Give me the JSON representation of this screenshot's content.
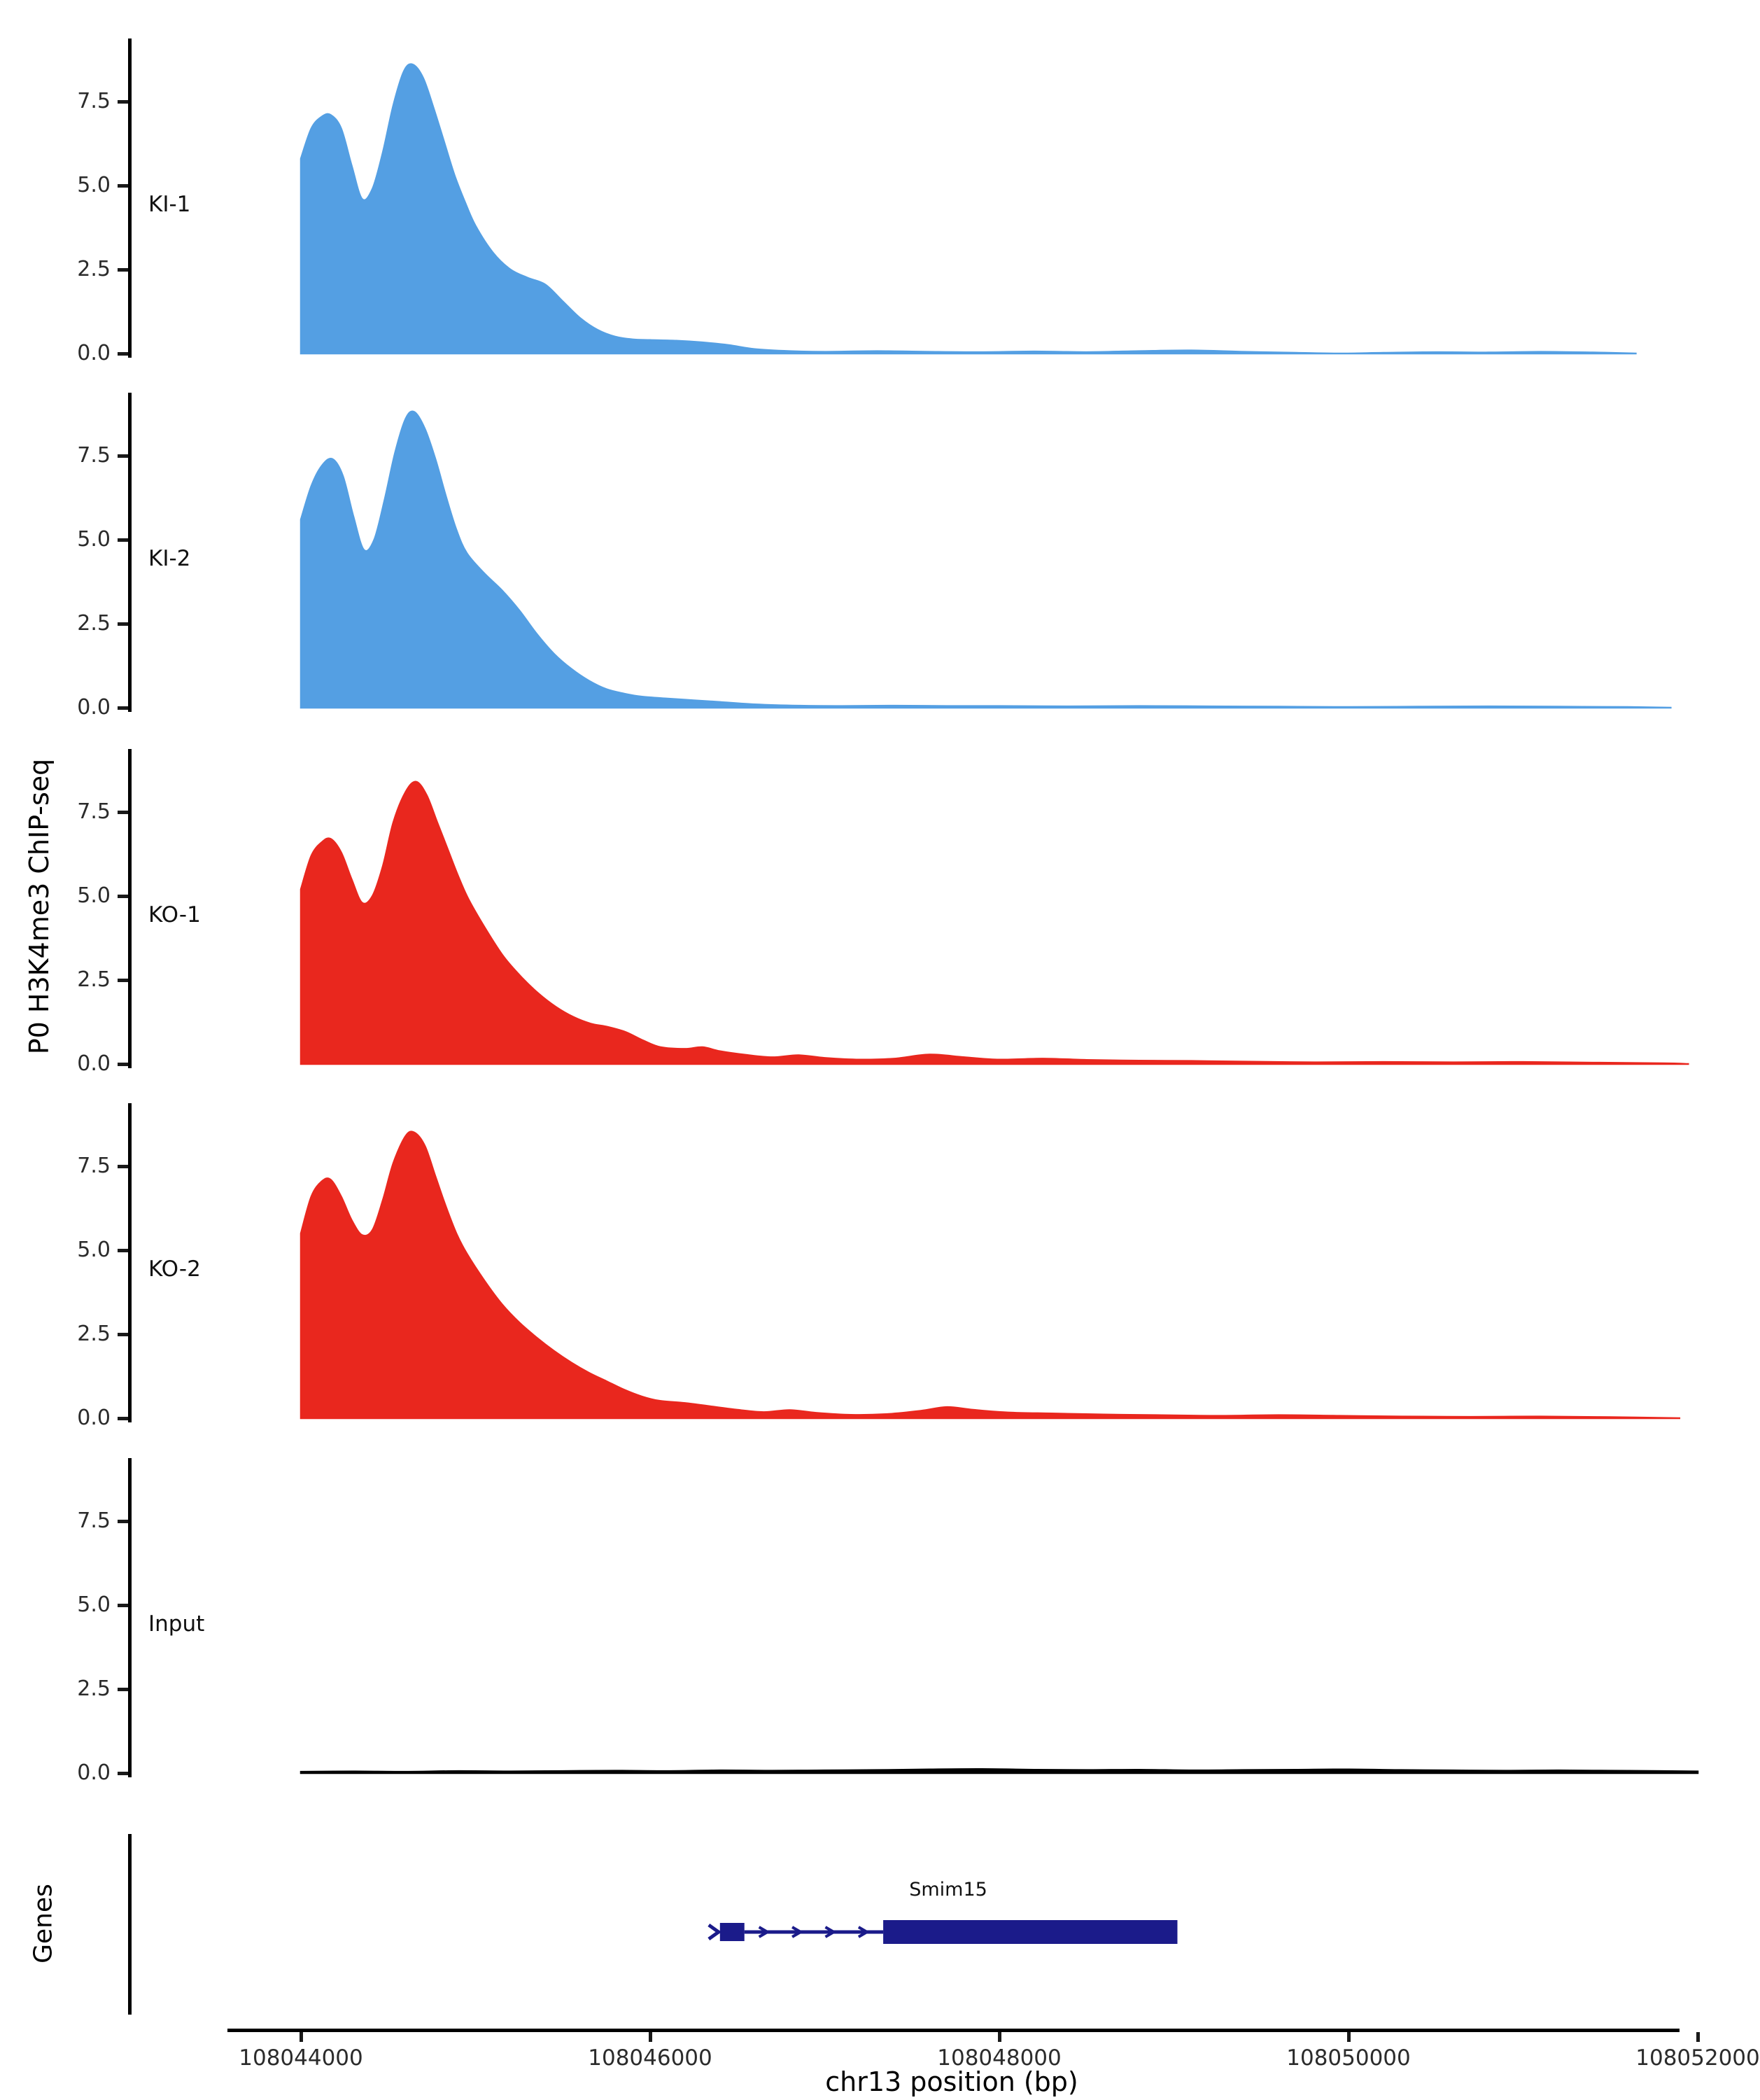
{
  "chart_data": {
    "type": "area",
    "title": "",
    "x_unit": "bp",
    "x_domain": [
      108044000,
      108052000
    ],
    "y_domain": [
      0,
      9.375
    ],
    "grid": false,
    "y_axis_title": "P0 H3K4me3 ChIP-seq",
    "x_axis_title": "chr13 position (bp)",
    "genes_panel_title": "Genes",
    "y_ticks": [
      {
        "value": 7.5,
        "label": "7.5"
      },
      {
        "value": 5.0,
        "label": "5.0"
      },
      {
        "value": 2.5,
        "label": "2.5"
      },
      {
        "value": 0.0,
        "label": "0.0"
      }
    ],
    "x_ticks": [
      {
        "bp": 108044000,
        "label": "108044000"
      },
      {
        "bp": 108046000,
        "label": "108046000"
      },
      {
        "bp": 108048000,
        "label": "108048000"
      },
      {
        "bp": 108050000,
        "label": "108050000"
      },
      {
        "bp": 108052000,
        "label": "108052000"
      }
    ],
    "tracks": [
      {
        "label": "KI-1",
        "color": "#549FE3",
        "points": [
          [
            108044000,
            5.8
          ],
          [
            108044060,
            6.7
          ],
          [
            108044120,
            7.05
          ],
          [
            108044170,
            7.1
          ],
          [
            108044230,
            6.7
          ],
          [
            108044290,
            5.6
          ],
          [
            108044350,
            4.6
          ],
          [
            108044410,
            4.9
          ],
          [
            108044470,
            6.0
          ],
          [
            108044530,
            7.4
          ],
          [
            108044590,
            8.4
          ],
          [
            108044640,
            8.6
          ],
          [
            108044700,
            8.2
          ],
          [
            108044760,
            7.3
          ],
          [
            108044820,
            6.3
          ],
          [
            108044880,
            5.3
          ],
          [
            108044940,
            4.5
          ],
          [
            108045000,
            3.8
          ],
          [
            108045100,
            3.0
          ],
          [
            108045200,
            2.5
          ],
          [
            108045300,
            2.25
          ],
          [
            108045400,
            2.05
          ],
          [
            108045500,
            1.55
          ],
          [
            108045600,
            1.05
          ],
          [
            108045700,
            0.7
          ],
          [
            108045800,
            0.5
          ],
          [
            108045900,
            0.42
          ],
          [
            108046000,
            0.4
          ],
          [
            108046150,
            0.38
          ],
          [
            108046300,
            0.33
          ],
          [
            108046450,
            0.25
          ],
          [
            108046600,
            0.13
          ],
          [
            108046800,
            0.07
          ],
          [
            108047000,
            0.05
          ],
          [
            108047300,
            0.07
          ],
          [
            108047600,
            0.05
          ],
          [
            108047900,
            0.04
          ],
          [
            108048200,
            0.06
          ],
          [
            108048500,
            0.04
          ],
          [
            108048800,
            0.07
          ],
          [
            108049100,
            0.09
          ],
          [
            108049400,
            0.05
          ],
          [
            108049700,
            0.02
          ],
          [
            108049950,
            0.0
          ],
          [
            108050200,
            0.02
          ],
          [
            108050500,
            0.04
          ],
          [
            108050800,
            0.03
          ],
          [
            108051100,
            0.05
          ],
          [
            108051400,
            0.03
          ],
          [
            108051650,
            0.0
          ]
        ]
      },
      {
        "label": "KI-2",
        "color": "#549FE3",
        "points": [
          [
            108044000,
            5.6
          ],
          [
            108044060,
            6.6
          ],
          [
            108044120,
            7.2
          ],
          [
            108044180,
            7.4
          ],
          [
            108044240,
            6.9
          ],
          [
            108044300,
            5.7
          ],
          [
            108044360,
            4.7
          ],
          [
            108044420,
            5.0
          ],
          [
            108044480,
            6.2
          ],
          [
            108044540,
            7.6
          ],
          [
            108044600,
            8.6
          ],
          [
            108044650,
            8.8
          ],
          [
            108044710,
            8.3
          ],
          [
            108044770,
            7.4
          ],
          [
            108044830,
            6.3
          ],
          [
            108044890,
            5.3
          ],
          [
            108044950,
            4.6
          ],
          [
            108045050,
            4.0
          ],
          [
            108045150,
            3.5
          ],
          [
            108045250,
            2.9
          ],
          [
            108045350,
            2.2
          ],
          [
            108045450,
            1.6
          ],
          [
            108045550,
            1.15
          ],
          [
            108045650,
            0.8
          ],
          [
            108045750,
            0.55
          ],
          [
            108045850,
            0.42
          ],
          [
            108045950,
            0.33
          ],
          [
            108046100,
            0.27
          ],
          [
            108046250,
            0.22
          ],
          [
            108046400,
            0.17
          ],
          [
            108046600,
            0.1
          ],
          [
            108046850,
            0.06
          ],
          [
            108047100,
            0.05
          ],
          [
            108047400,
            0.06
          ],
          [
            108047700,
            0.05
          ],
          [
            108048000,
            0.05
          ],
          [
            108048400,
            0.04
          ],
          [
            108048800,
            0.05
          ],
          [
            108049200,
            0.04
          ],
          [
            108049600,
            0.03
          ],
          [
            108050000,
            0.02
          ],
          [
            108050400,
            0.03
          ],
          [
            108050800,
            0.04
          ],
          [
            108051200,
            0.03
          ],
          [
            108051600,
            0.02
          ],
          [
            108051850,
            0.0
          ]
        ]
      },
      {
        "label": "KO-1",
        "color": "#E9271E",
        "points": [
          [
            108044000,
            5.2
          ],
          [
            108044060,
            6.2
          ],
          [
            108044120,
            6.6
          ],
          [
            108044170,
            6.7
          ],
          [
            108044230,
            6.3
          ],
          [
            108044290,
            5.5
          ],
          [
            108044350,
            4.8
          ],
          [
            108044410,
            5.0
          ],
          [
            108044470,
            5.9
          ],
          [
            108044530,
            7.2
          ],
          [
            108044600,
            8.1
          ],
          [
            108044660,
            8.4
          ],
          [
            108044720,
            8.0
          ],
          [
            108044780,
            7.2
          ],
          [
            108044840,
            6.4
          ],
          [
            108044900,
            5.6
          ],
          [
            108044960,
            4.9
          ],
          [
            108045060,
            4.0
          ],
          [
            108045160,
            3.2
          ],
          [
            108045260,
            2.6
          ],
          [
            108045360,
            2.1
          ],
          [
            108045460,
            1.7
          ],
          [
            108045560,
            1.4
          ],
          [
            108045660,
            1.2
          ],
          [
            108045760,
            1.1
          ],
          [
            108045860,
            0.95
          ],
          [
            108045960,
            0.7
          ],
          [
            108046060,
            0.5
          ],
          [
            108046200,
            0.45
          ],
          [
            108046300,
            0.5
          ],
          [
            108046400,
            0.38
          ],
          [
            108046550,
            0.27
          ],
          [
            108046700,
            0.2
          ],
          [
            108046850,
            0.26
          ],
          [
            108047000,
            0.18
          ],
          [
            108047200,
            0.13
          ],
          [
            108047400,
            0.16
          ],
          [
            108047600,
            0.28
          ],
          [
            108047800,
            0.2
          ],
          [
            108048000,
            0.13
          ],
          [
            108048250,
            0.16
          ],
          [
            108048500,
            0.12
          ],
          [
            108048800,
            0.1
          ],
          [
            108049100,
            0.09
          ],
          [
            108049400,
            0.07
          ],
          [
            108049800,
            0.05
          ],
          [
            108050200,
            0.06
          ],
          [
            108050600,
            0.05
          ],
          [
            108051000,
            0.06
          ],
          [
            108051400,
            0.04
          ],
          [
            108051800,
            0.02
          ],
          [
            108051950,
            0.0
          ]
        ]
      },
      {
        "label": "KO-2",
        "color": "#E9271E",
        "points": [
          [
            108044000,
            5.5
          ],
          [
            108044060,
            6.6
          ],
          [
            108044120,
            7.05
          ],
          [
            108044170,
            7.1
          ],
          [
            108044230,
            6.6
          ],
          [
            108044290,
            5.9
          ],
          [
            108044350,
            5.45
          ],
          [
            108044410,
            5.6
          ],
          [
            108044470,
            6.5
          ],
          [
            108044530,
            7.6
          ],
          [
            108044600,
            8.4
          ],
          [
            108044650,
            8.5
          ],
          [
            108044710,
            8.1
          ],
          [
            108044770,
            7.2
          ],
          [
            108044830,
            6.3
          ],
          [
            108044890,
            5.5
          ],
          [
            108044950,
            4.9
          ],
          [
            108045050,
            4.1
          ],
          [
            108045150,
            3.4
          ],
          [
            108045250,
            2.85
          ],
          [
            108045350,
            2.4
          ],
          [
            108045450,
            2.0
          ],
          [
            108045550,
            1.65
          ],
          [
            108045650,
            1.35
          ],
          [
            108045750,
            1.1
          ],
          [
            108045850,
            0.85
          ],
          [
            108045950,
            0.65
          ],
          [
            108046050,
            0.52
          ],
          [
            108046200,
            0.45
          ],
          [
            108046350,
            0.35
          ],
          [
            108046500,
            0.25
          ],
          [
            108046650,
            0.18
          ],
          [
            108046800,
            0.24
          ],
          [
            108046950,
            0.16
          ],
          [
            108047150,
            0.1
          ],
          [
            108047350,
            0.12
          ],
          [
            108047550,
            0.22
          ],
          [
            108047700,
            0.33
          ],
          [
            108047850,
            0.25
          ],
          [
            108048050,
            0.17
          ],
          [
            108048300,
            0.14
          ],
          [
            108048600,
            0.11
          ],
          [
            108048900,
            0.09
          ],
          [
            108049250,
            0.07
          ],
          [
            108049600,
            0.09
          ],
          [
            108049950,
            0.07
          ],
          [
            108050300,
            0.05
          ],
          [
            108050700,
            0.04
          ],
          [
            108051100,
            0.05
          ],
          [
            108051500,
            0.03
          ],
          [
            108051900,
            0.0
          ]
        ]
      },
      {
        "label": "Input",
        "color": "#000000",
        "points": [
          [
            108044000,
            0.04
          ],
          [
            108044300,
            0.05
          ],
          [
            108044600,
            0.04
          ],
          [
            108044900,
            0.06
          ],
          [
            108045200,
            0.05
          ],
          [
            108045500,
            0.06
          ],
          [
            108045800,
            0.07
          ],
          [
            108046100,
            0.06
          ],
          [
            108046400,
            0.08
          ],
          [
            108046700,
            0.07
          ],
          [
            108047000,
            0.08
          ],
          [
            108047300,
            0.09
          ],
          [
            108047600,
            0.11
          ],
          [
            108047900,
            0.12
          ],
          [
            108048200,
            0.1
          ],
          [
            108048500,
            0.09
          ],
          [
            108048800,
            0.1
          ],
          [
            108049100,
            0.08
          ],
          [
            108049400,
            0.09
          ],
          [
            108049700,
            0.1
          ],
          [
            108050000,
            0.11
          ],
          [
            108050300,
            0.09
          ],
          [
            108050600,
            0.08
          ],
          [
            108050900,
            0.07
          ],
          [
            108051200,
            0.08
          ],
          [
            108051500,
            0.07
          ],
          [
            108051800,
            0.06
          ],
          [
            108052000,
            0.05
          ]
        ]
      }
    ],
    "gene": {
      "name": "Smim15",
      "color": "#1B1B8A",
      "strand": "+",
      "start_bp": 108046360,
      "end_bp": 108049020,
      "exons": [
        [
          108046400,
          108046540
        ],
        [
          108047335,
          108049020
        ]
      ],
      "intron": [
        108046540,
        108047335
      ],
      "intron_arrow_bps": [
        108046660,
        108046850,
        108047040,
        108047230
      ]
    }
  }
}
